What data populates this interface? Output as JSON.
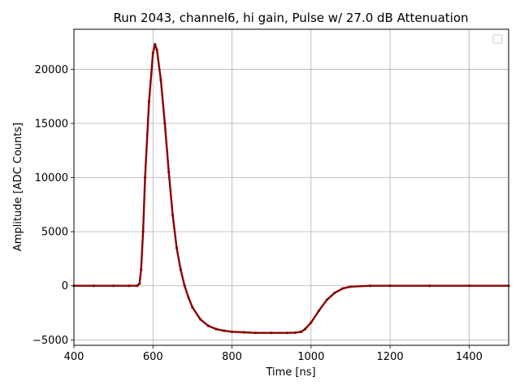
{
  "chart_data": {
    "type": "scatter",
    "title": "Run 2043, channel6, hi gain, Pulse w/ 27.0 dB Attenuation",
    "xlabel": "Time [ns]",
    "ylabel": "Amplitude [ADC Counts]",
    "xlim": [
      400,
      1500
    ],
    "ylim": [
      -5500,
      23700
    ],
    "xticks": [
      400,
      600,
      800,
      1000,
      1200,
      1400
    ],
    "yticks": [
      -5000,
      0,
      5000,
      10000,
      15000,
      20000
    ],
    "ytick_labels": [
      "−5000",
      "0",
      "5000",
      "10000",
      "15000",
      "20000"
    ],
    "grid": true,
    "legend_position": "top-right",
    "series": [
      {
        "color": "#8b0000",
        "x": [
          400,
          450,
          500,
          540,
          560,
          566,
          570,
          575,
          580,
          590,
          600,
          605,
          610,
          620,
          630,
          640,
          650,
          660,
          670,
          680,
          690,
          700,
          720,
          740,
          760,
          780,
          800,
          830,
          860,
          900,
          940,
          960,
          975,
          985,
          1000,
          1020,
          1040,
          1060,
          1080,
          1100,
          1150,
          1200,
          1300,
          1400,
          1500
        ],
        "y": [
          0,
          0,
          0,
          0,
          0,
          200,
          1500,
          5000,
          10000,
          17000,
          21500,
          22300,
          21800,
          19000,
          15000,
          10500,
          6500,
          3500,
          1500,
          0,
          -1100,
          -2000,
          -3100,
          -3700,
          -4000,
          -4150,
          -4250,
          -4300,
          -4350,
          -4350,
          -4350,
          -4330,
          -4250,
          -4000,
          -3400,
          -2300,
          -1300,
          -650,
          -250,
          -80,
          0,
          0,
          0,
          0,
          0
        ]
      }
    ]
  }
}
